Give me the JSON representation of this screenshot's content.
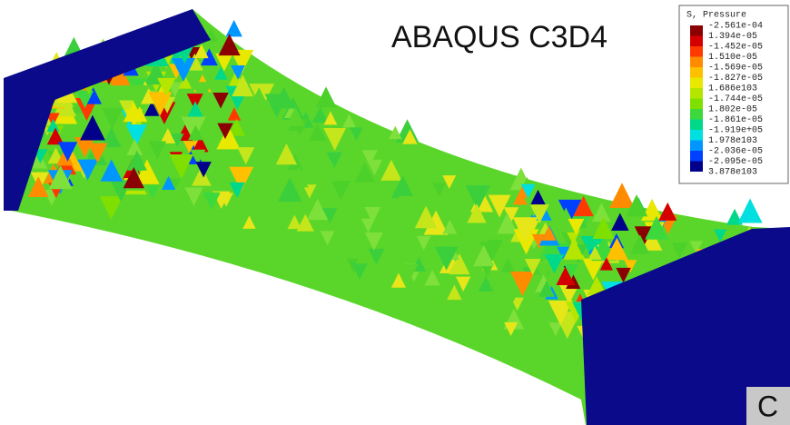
{
  "title": "ABAQUS C3D4",
  "legend": {
    "title": "S, Pressure",
    "labels": [
      "-2.561e-04",
      "1.394e-05",
      "-1.452e-05",
      "1.510e-05",
      "-1.569e-05",
      "-1.827e-05",
      "1.686e103",
      "-1.744e-05",
      "1.802e-05",
      "-1.861e-05",
      "-1.919e+05",
      "1.978e103",
      "-2.036e-05",
      "-2.095e-05",
      "3.878e103"
    ]
  },
  "corner_label": "C"
}
